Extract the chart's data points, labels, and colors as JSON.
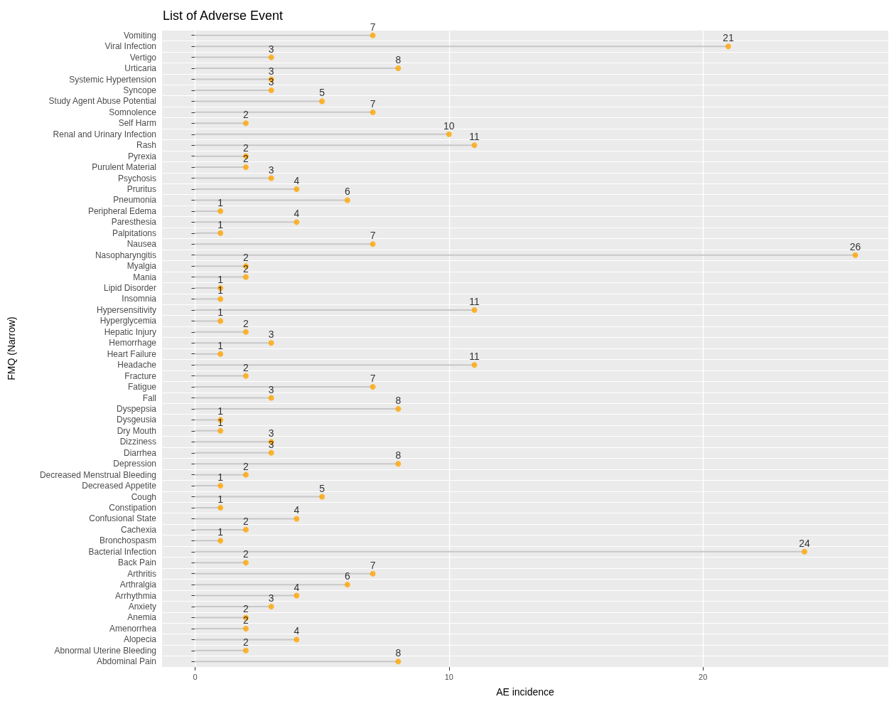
{
  "chart_data": {
    "type": "lollipop",
    "title": "List of Adverse Event",
    "xlabel": "AE incidence",
    "ylabel": "FMQ (Narrow)",
    "orientation": "horizontal",
    "categories": [
      "Vomiting",
      "Viral Infection",
      "Vertigo",
      "Urticaria",
      "Systemic Hypertension",
      "Syncope",
      "Study Agent Abuse Potential",
      "Somnolence",
      "Self Harm",
      "Renal and Urinary Infection",
      "Rash",
      "Pyrexia",
      "Purulent Material",
      "Psychosis",
      "Pruritus",
      "Pneumonia",
      "Peripheral Edema",
      "Paresthesia",
      "Palpitations",
      "Nausea",
      "Nasopharyngitis",
      "Myalgia",
      "Mania",
      "Lipid Disorder",
      "Insomnia",
      "Hypersensitivity",
      "Hyperglycemia",
      "Hepatic Injury",
      "Hemorrhage",
      "Heart Failure",
      "Headache",
      "Fracture",
      "Fatigue",
      "Fall",
      "Dyspepsia",
      "Dysgeusia",
      "Dry Mouth",
      "Dizziness",
      "Diarrhea",
      "Depression",
      "Decreased Menstrual Bleeding",
      "Decreased Appetite",
      "Cough",
      "Constipation",
      "Confusional State",
      "Cachexia",
      "Bronchospasm",
      "Bacterial Infection",
      "Back Pain",
      "Arthritis",
      "Arthralgia",
      "Arrhythmia",
      "Anxiety",
      "Anemia",
      "Amenorrhea",
      "Alopecia",
      "Abnormal Uterine Bleeding",
      "Abdominal Pain"
    ],
    "values": [
      7,
      21,
      3,
      8,
      3,
      3,
      5,
      7,
      2,
      10,
      11,
      2,
      2,
      3,
      4,
      6,
      1,
      4,
      1,
      7,
      26,
      2,
      2,
      1,
      1,
      11,
      1,
      2,
      3,
      1,
      11,
      2,
      7,
      3,
      8,
      1,
      1,
      3,
      3,
      8,
      2,
      1,
      5,
      1,
      4,
      2,
      1,
      24,
      2,
      7,
      6,
      4,
      3,
      2,
      2,
      4,
      2,
      8
    ],
    "color": "#ffa500",
    "xlim": [
      -1.3,
      27.3
    ],
    "xticks": [
      0,
      10,
      20
    ],
    "grid": true,
    "marker": "circle",
    "data_labels": true
  }
}
